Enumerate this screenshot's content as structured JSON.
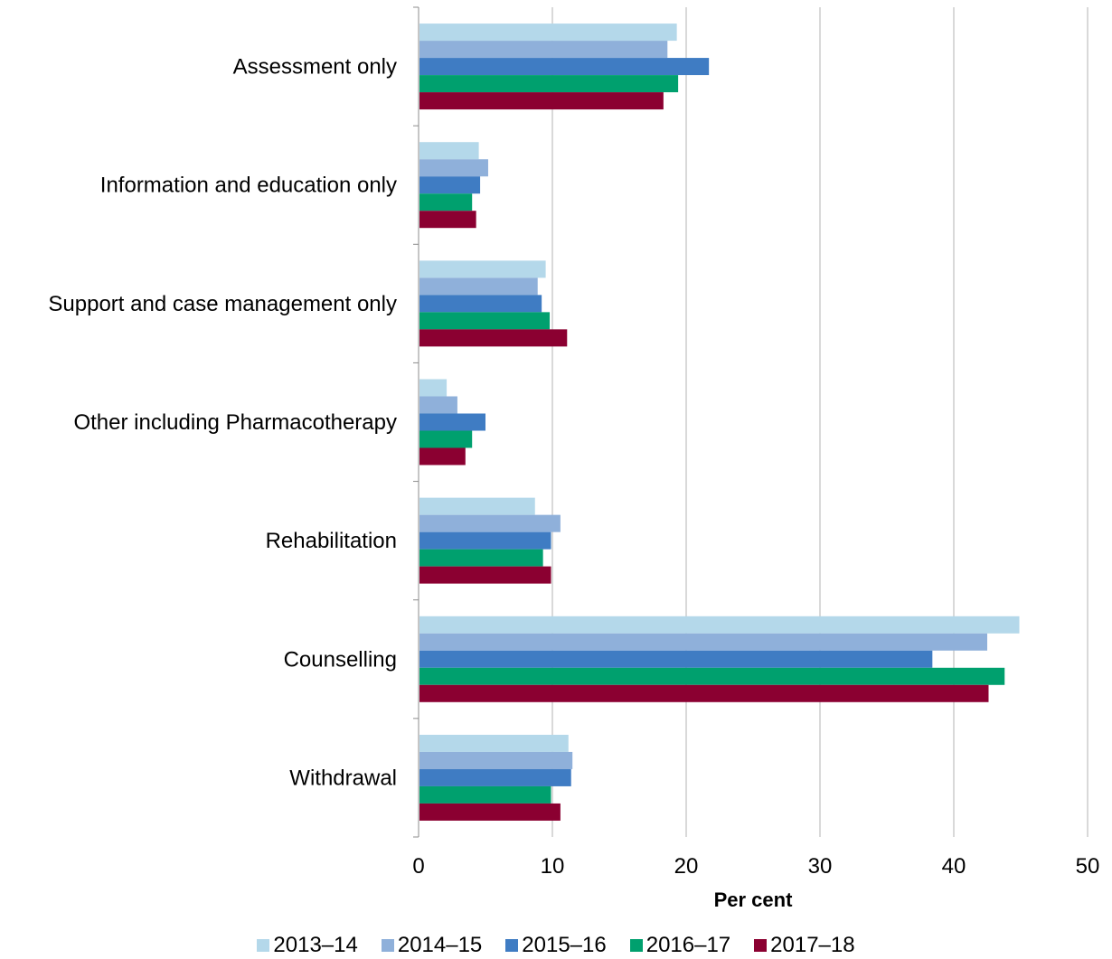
{
  "chart_data": {
    "type": "bar",
    "orientation": "horizontal",
    "xlabel": "Per cent",
    "xlim": [
      0,
      50
    ],
    "xticks": [
      "0",
      "10",
      "20",
      "30",
      "40",
      "50"
    ],
    "grid": true,
    "legend_position": "bottom",
    "categories": [
      "Assessment only",
      "Information and education only",
      "Support and case management only",
      "Other including Pharmacotherapy",
      "Rehabilitation",
      "Counselling",
      "Withdrawal"
    ],
    "series": [
      {
        "name": "2013–14",
        "color": "#b4d8ea",
        "values": [
          19.3,
          4.5,
          9.5,
          2.1,
          8.7,
          44.9,
          11.2
        ]
      },
      {
        "name": "2014–15",
        "color": "#8fb0da",
        "values": [
          18.6,
          5.2,
          8.9,
          2.9,
          10.6,
          42.5,
          11.5
        ]
      },
      {
        "name": "2015–16",
        "color": "#3f7cc3",
        "values": [
          21.7,
          4.6,
          9.2,
          5.0,
          9.9,
          38.4,
          11.4
        ]
      },
      {
        "name": "2016–17",
        "color": "#00a06e",
        "values": [
          19.4,
          4.0,
          9.8,
          4.0,
          9.3,
          43.8,
          9.9
        ]
      },
      {
        "name": "2017–18",
        "color": "#8b0031",
        "values": [
          18.3,
          4.3,
          11.1,
          3.5,
          9.9,
          42.6,
          10.6
        ]
      }
    ]
  }
}
